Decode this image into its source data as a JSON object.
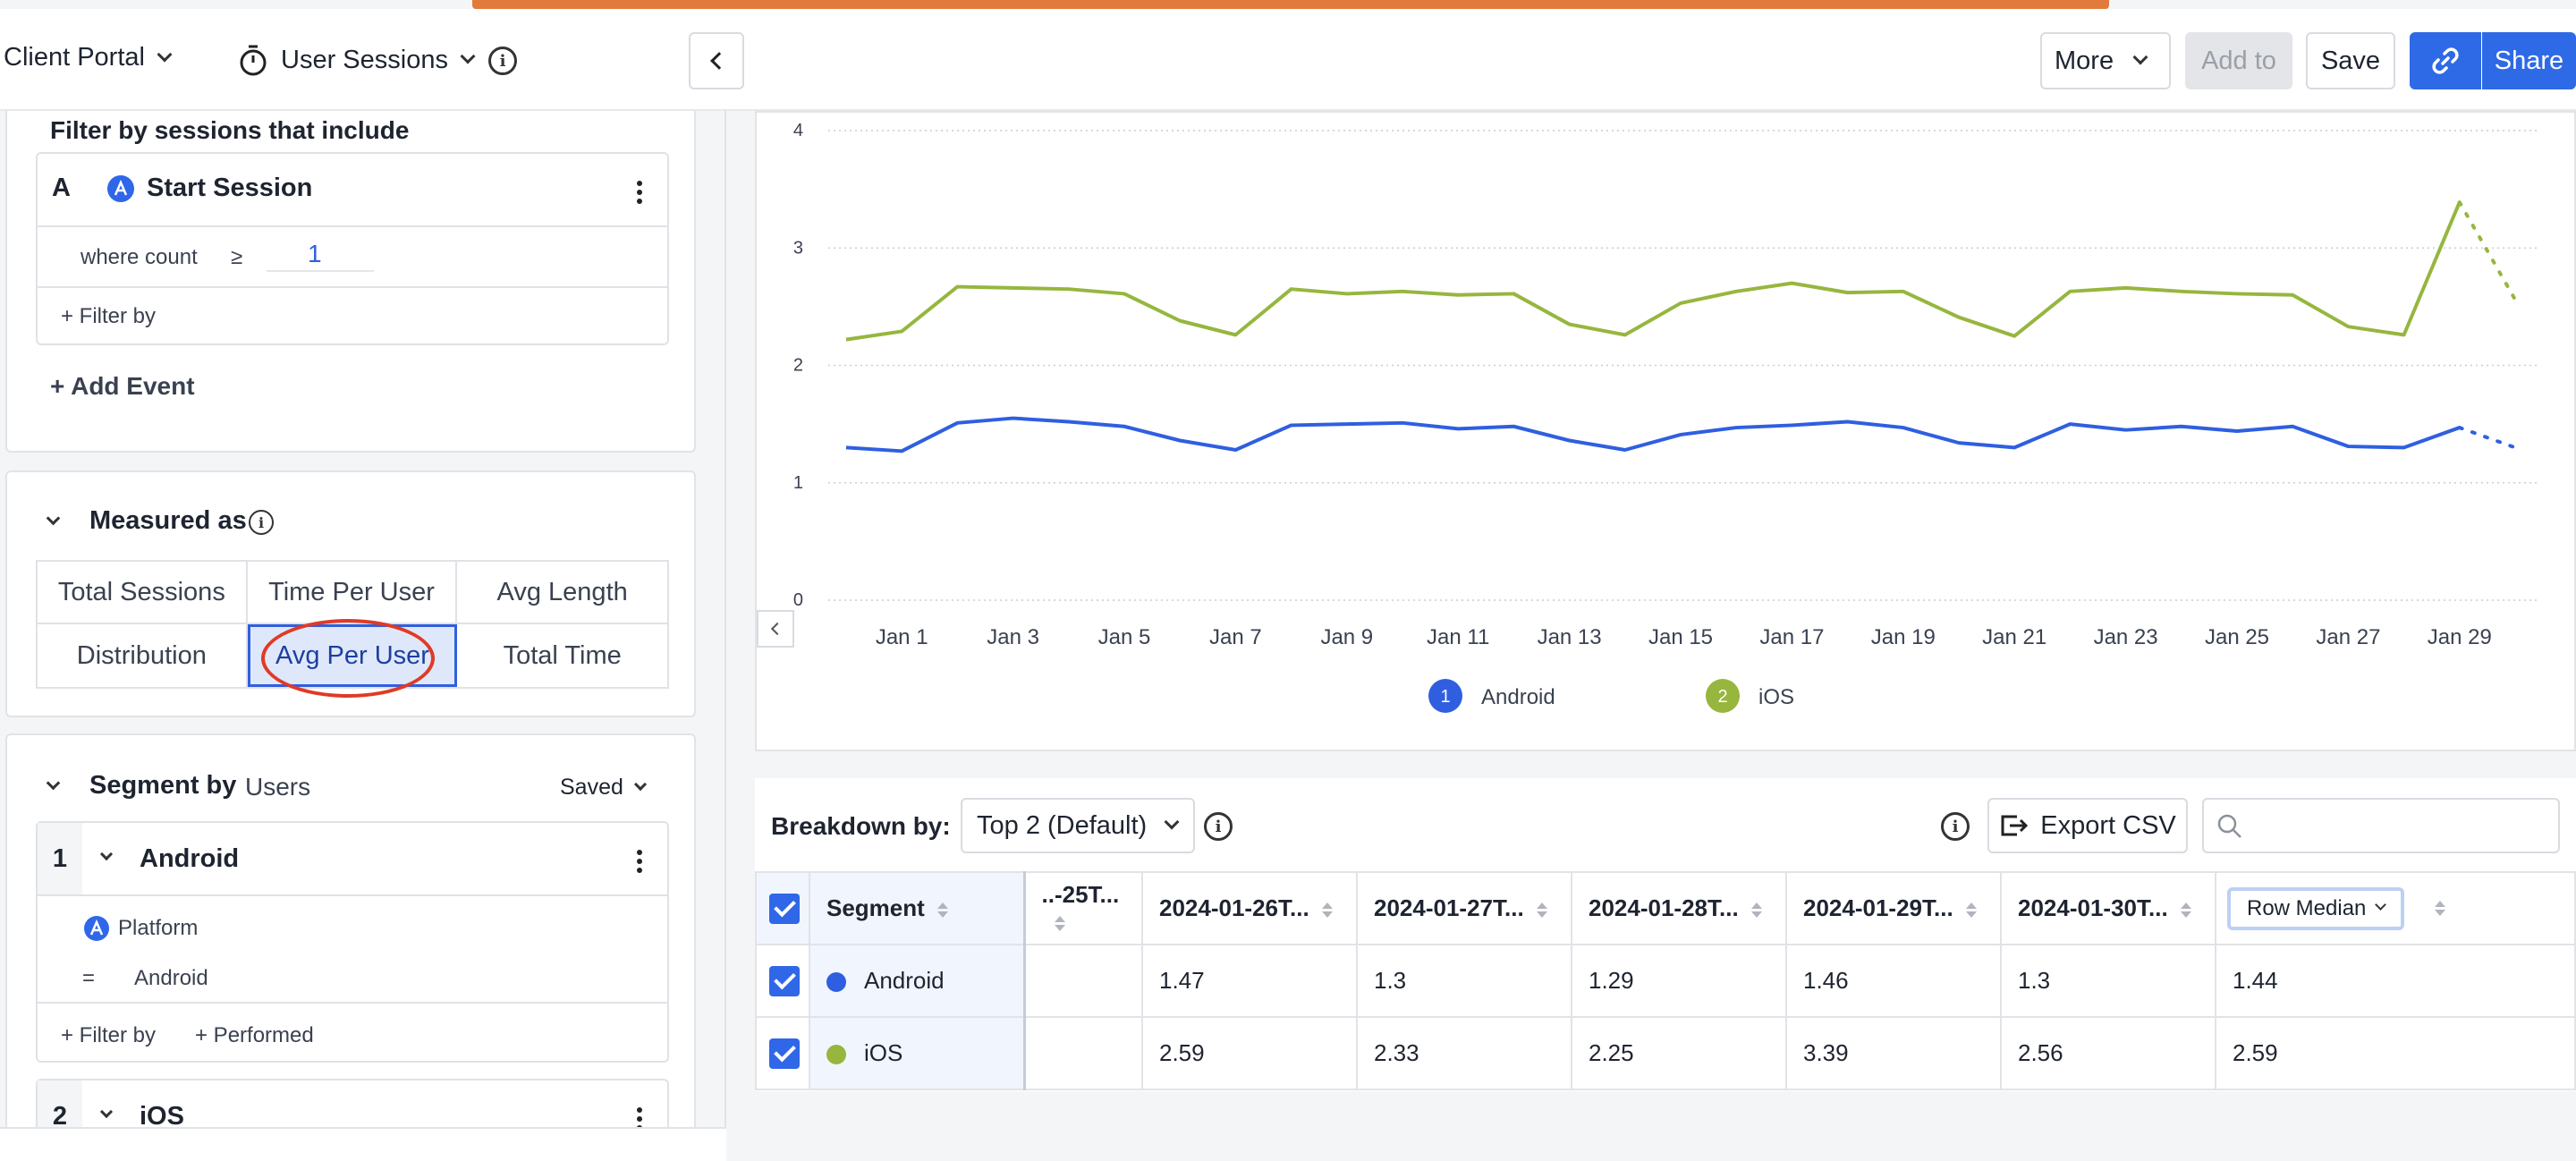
{
  "topbar": {
    "portal_label": "Client Portal",
    "report_label": "User Sessions",
    "more_label": "More",
    "add_to_label": "Add to",
    "save_label": "Save",
    "share_label": "Share"
  },
  "filter": {
    "heading": "Filter by sessions that include",
    "event_letter": "A",
    "event_name": "Start Session",
    "where_label": "where count",
    "operator": "≥",
    "count_value": "1",
    "filter_by_label": "+ Filter by",
    "add_event_label": "+ Add Event"
  },
  "measured": {
    "title": "Measured as",
    "options": [
      "Total Sessions",
      "Time Per User",
      "Avg Length",
      "Distribution",
      "Avg Per User",
      "Total Time"
    ],
    "selected": "Avg Per User"
  },
  "segment": {
    "title": "Segment by",
    "subject": "Users",
    "saved_label": "Saved",
    "seg1_index": "1",
    "seg1_name": "Android",
    "seg1_property": "Platform",
    "seg1_operator": "=",
    "seg1_value": "Android",
    "filter_by_label": "+ Filter by",
    "performed_label": "+ Performed",
    "seg2_index": "2",
    "seg2_name": "iOS"
  },
  "chart_data": {
    "type": "line",
    "ylim": [
      0,
      4
    ],
    "yticks": [
      "0",
      "1",
      "2",
      "3",
      "4"
    ],
    "x_tick_labels": [
      "Jan 1",
      "Jan 3",
      "Jan 5",
      "Jan 7",
      "Jan 9",
      "Jan 11",
      "Jan 13",
      "Jan 15",
      "Jan 17",
      "Jan 19",
      "Jan 21",
      "Jan 23",
      "Jan 25",
      "Jan 27",
      "Jan 29"
    ],
    "x": [
      "Dec 31",
      "Jan 1",
      "Jan 2",
      "Jan 3",
      "Jan 4",
      "Jan 5",
      "Jan 6",
      "Jan 7",
      "Jan 8",
      "Jan 9",
      "Jan 10",
      "Jan 11",
      "Jan 12",
      "Jan 13",
      "Jan 14",
      "Jan 15",
      "Jan 16",
      "Jan 17",
      "Jan 18",
      "Jan 19",
      "Jan 20",
      "Jan 21",
      "Jan 22",
      "Jan 23",
      "Jan 24",
      "Jan 25",
      "Jan 26",
      "Jan 27",
      "Jan 28",
      "Jan 29",
      "Jan 30"
    ],
    "grid": true,
    "legend": "bottom",
    "series": [
      {
        "name": "Android",
        "index": "1",
        "color": "#2f5fe0",
        "values": [
          1.3,
          1.27,
          1.51,
          1.55,
          1.52,
          1.48,
          1.36,
          1.28,
          1.49,
          1.5,
          1.51,
          1.46,
          1.48,
          1.36,
          1.28,
          1.41,
          1.47,
          1.49,
          1.52,
          1.47,
          1.34,
          1.3,
          1.5,
          1.45,
          1.48,
          1.44,
          1.48,
          1.31,
          1.3,
          1.47,
          1.3
        ],
        "incomplete_from": "Jan 29"
      },
      {
        "name": "iOS",
        "index": "2",
        "color": "#96b63e",
        "values": [
          2.22,
          2.29,
          2.67,
          2.66,
          2.65,
          2.61,
          2.38,
          2.26,
          2.65,
          2.61,
          2.63,
          2.6,
          2.61,
          2.35,
          2.26,
          2.53,
          2.63,
          2.7,
          2.62,
          2.63,
          2.41,
          2.25,
          2.63,
          2.66,
          2.63,
          2.61,
          2.6,
          2.33,
          2.26,
          3.39,
          2.56
        ],
        "incomplete_from": "Jan 29"
      }
    ]
  },
  "breakdown": {
    "label": "Breakdown by:",
    "select_value": "Top 2 (Default)",
    "export_label": "Export CSV",
    "search_placeholder": "",
    "columns": [
      "Segment",
      "..-25T...",
      "2024-01-26T...",
      "2024-01-27T...",
      "2024-01-28T...",
      "2024-01-29T...",
      "2024-01-30T...",
      "Row Median"
    ],
    "rows": [
      {
        "name": "Android",
        "color": "#2f5fe0",
        "values": [
          "",
          "1.47",
          "1.3",
          "1.29",
          "1.46",
          "1.3",
          "1.44"
        ]
      },
      {
        "name": "iOS",
        "color": "#96b63e",
        "values": [
          "",
          "2.59",
          "2.33",
          "2.25",
          "3.39",
          "2.56",
          "2.59"
        ]
      }
    ]
  }
}
